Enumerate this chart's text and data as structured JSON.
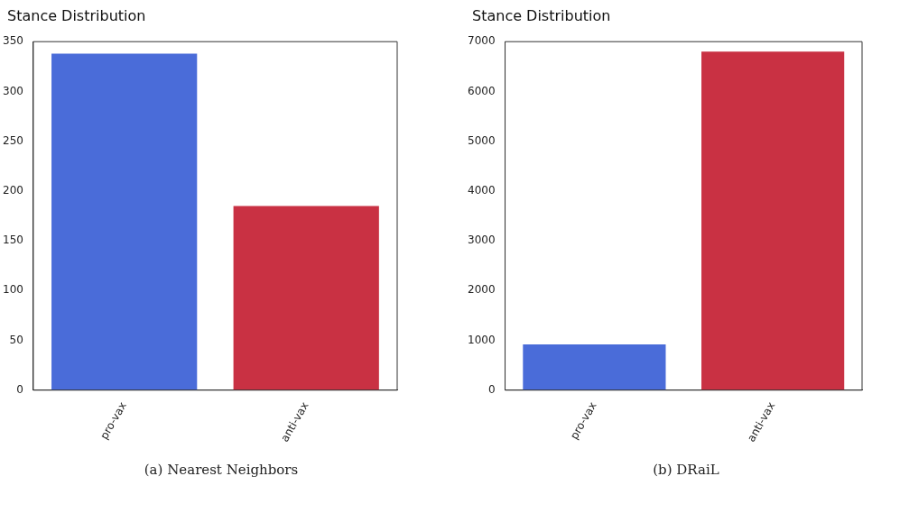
{
  "chart_data": [
    {
      "type": "bar",
      "title": "Stance Distribution",
      "categories": [
        "pro-vax",
        "anti-vax"
      ],
      "values": [
        338,
        185
      ],
      "colors": [
        "#4a6cd9",
        "#c93143"
      ],
      "ylim": [
        0,
        350
      ],
      "yticks": [
        0,
        50,
        100,
        150,
        200,
        250,
        300,
        350
      ],
      "grid": false,
      "legend": false,
      "annotations": [
        "(a) Nearest Neighbors"
      ]
    },
    {
      "type": "bar",
      "title": "Stance Distribution",
      "categories": [
        "pro-vax",
        "anti-vax"
      ],
      "values": [
        920,
        6800
      ],
      "colors": [
        "#4a6cd9",
        "#c93143"
      ],
      "ylim": [
        0,
        7000
      ],
      "yticks": [
        0,
        1000,
        2000,
        3000,
        4000,
        5000,
        6000,
        7000
      ],
      "grid": false,
      "legend": false,
      "annotations": [
        "(b) DRaiL"
      ]
    }
  ]
}
